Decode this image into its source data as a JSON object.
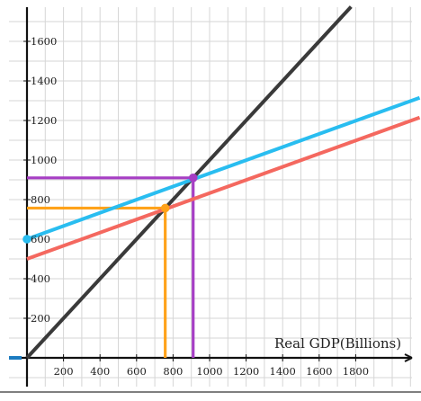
{
  "chart_data": {
    "type": "line",
    "title": "",
    "xlabel": "Real GDP(Billions)",
    "ylabel": "",
    "xlim": [
      -100,
      2150
    ],
    "ylim": [
      -170,
      1780
    ],
    "x_ticks": [
      200,
      400,
      600,
      800,
      1000,
      1200,
      1400,
      1600,
      1800
    ],
    "y_ticks": [
      200,
      400,
      600,
      800,
      1000,
      1200,
      1400,
      1600
    ],
    "grid": true,
    "legend": "none",
    "series": [
      {
        "color": "#3a3a3a",
        "x": [
          0,
          1775
        ],
        "y": [
          0,
          1775
        ]
      },
      {
        "color": "#29bdf0",
        "x": [
          0,
          2150
        ],
        "y": [
          600,
          1315
        ]
      },
      {
        "color": "#f4685f",
        "x": [
          0,
          2150
        ],
        "y": [
          500,
          1215
        ]
      }
    ],
    "reference_lines": [
      {
        "color": "#ffa21a",
        "x": 757,
        "y": 757
      },
      {
        "color": "#a63ec4",
        "x": 910,
        "y": 910
      }
    ],
    "points": [
      {
        "color": "#29bdf0",
        "x": 0,
        "y": 600
      },
      {
        "color": "#ffa21a",
        "x": 757,
        "y": 757
      },
      {
        "color": "#a63ec4",
        "x": 910,
        "y": 910
      }
    ],
    "colors": {
      "grid": "#d6d6d6",
      "axis": "#111111",
      "origin_marker": "#1c7bc0"
    }
  }
}
